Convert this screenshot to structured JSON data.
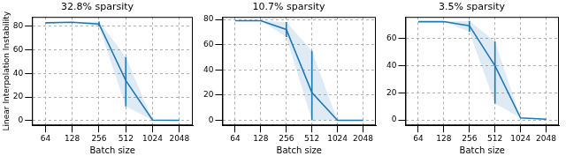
{
  "chart_data": [
    {
      "type": "line",
      "title": "32.8% sparsity",
      "x_label": "Batch size",
      "y_label": "Linear Interpolation Instability",
      "categories": [
        "64",
        "128",
        "256",
        "512",
        "1024",
        "2048"
      ],
      "series": [
        {
          "color": "#1f77b4",
          "values": [
            83,
            83.5,
            82,
            34,
            0.5,
            0.3
          ],
          "error_low": [
            null,
            null,
            80,
            12,
            null,
            null
          ],
          "error_high": [
            null,
            null,
            84,
            54,
            null,
            null
          ]
        }
      ],
      "ylim": [
        -4,
        88
      ],
      "yticks": [
        0,
        20,
        40,
        60,
        80
      ],
      "grid": true
    },
    {
      "type": "line",
      "title": "10.7% sparsity",
      "x_label": "Batch size",
      "categories": [
        "64",
        "128",
        "256",
        "512",
        "1024",
        "2048"
      ],
      "series": [
        {
          "color": "#1f77b4",
          "values": [
            79,
            79,
            72,
            22,
            0,
            0
          ],
          "error_low": [
            null,
            null,
            66,
            0,
            null,
            null
          ],
          "error_high": [
            null,
            null,
            78,
            55,
            null,
            null
          ]
        }
      ],
      "ylim": [
        -4,
        82
      ],
      "yticks": [
        0,
        20,
        40,
        60,
        80
      ],
      "grid": true
    },
    {
      "type": "line",
      "title": "3.5% sparsity",
      "x_label": "Batch size",
      "categories": [
        "64",
        "128",
        "256",
        "512",
        "1024",
        "2048"
      ],
      "series": [
        {
          "color": "#1f77b4",
          "values": [
            72.5,
            72.5,
            69.5,
            40,
            1.5,
            0.5
          ],
          "error_low": [
            null,
            null,
            65,
            12,
            null,
            null
          ],
          "error_high": [
            null,
            null,
            73,
            58,
            null,
            null
          ]
        }
      ],
      "ylim": [
        -4,
        76
      ],
      "yticks": [
        0,
        20,
        40,
        60
      ],
      "grid": true
    }
  ]
}
